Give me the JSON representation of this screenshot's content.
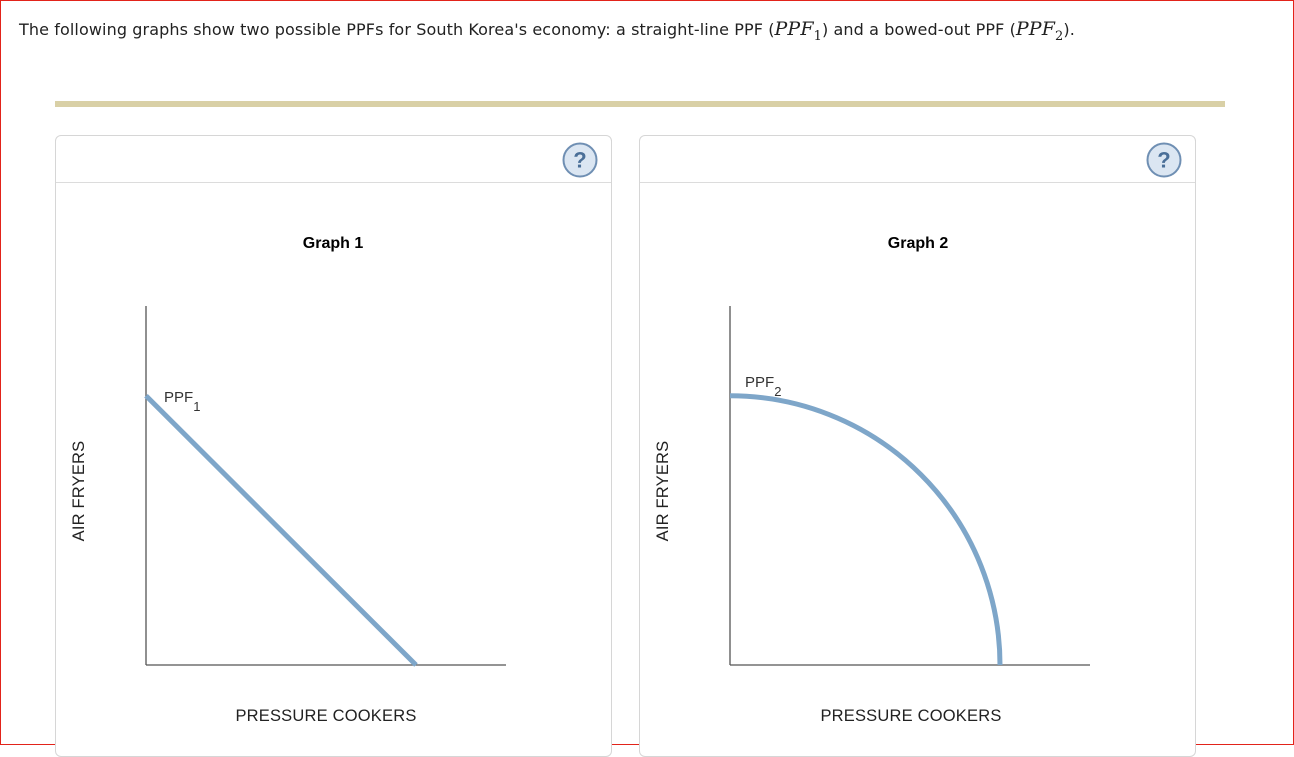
{
  "intro": {
    "text_a": "The following graphs show two possible PPFs for South Korea's economy: a straight-line PPF (",
    "math1_base": "PPF",
    "math1_sub": "1",
    "text_b": ") and a bowed-out PPF (",
    "math2_base": "PPF",
    "math2_sub": "2",
    "text_c": ")."
  },
  "help_icon": "question-mark-circle",
  "colors": {
    "frame": "#e2231a",
    "divider": "#d9d0a6",
    "curve": "#7ea6c9",
    "axis": "#555555",
    "help_stroke": "#6f8fb3",
    "help_fill": "#dbe6f2"
  },
  "chart_data": [
    {
      "type": "line",
      "title": "Graph 1",
      "xlabel": "PRESSURE COOKERS",
      "ylabel": "AIR FRYERS",
      "xlim": [
        0,
        1
      ],
      "ylim": [
        0,
        1
      ],
      "grid": false,
      "series": [
        {
          "name": "PPF",
          "name_sub": "1",
          "shape": "straight",
          "x": [
            0,
            0.75
          ],
          "y": [
            0.75,
            0
          ]
        }
      ]
    },
    {
      "type": "line",
      "title": "Graph 2",
      "xlabel": "PRESSURE COOKERS",
      "ylabel": "AIR FRYERS",
      "xlim": [
        0,
        1
      ],
      "ylim": [
        0,
        1
      ],
      "grid": false,
      "series": [
        {
          "name": "PPF",
          "name_sub": "2",
          "shape": "bowed-out",
          "x": [
            0,
            0.75
          ],
          "y": [
            0.75,
            0
          ]
        }
      ]
    }
  ]
}
